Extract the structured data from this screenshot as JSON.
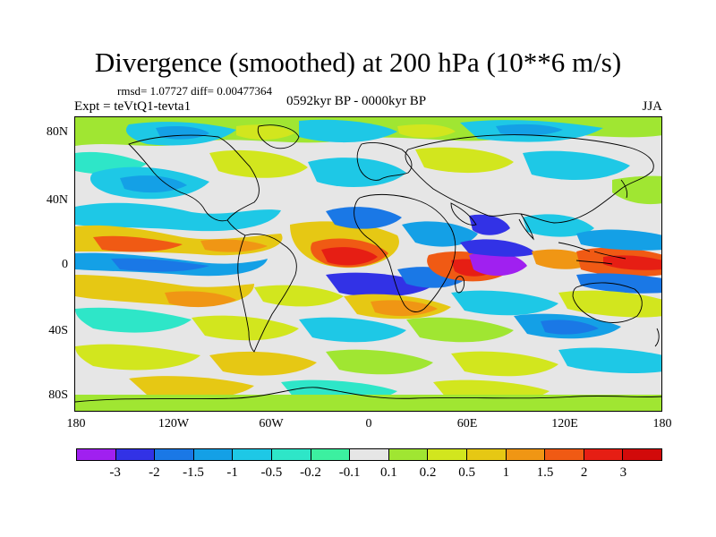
{
  "title": "Divergence (smoothed) at 200 hPa (10**6 m/s)",
  "stats": "rmsd= 1.07727 diff= 0.00477364",
  "experiment": "Expt = teVtQ1-tevta1",
  "period": "0592kyr BP - 0000kyr BP",
  "season": "JJA",
  "lat_labels": [
    "80N",
    "40N",
    "0",
    "40S",
    "80S"
  ],
  "lon_labels": [
    "180",
    "120W",
    "60W",
    "0",
    "60E",
    "120E",
    "180"
  ],
  "colorbar": {
    "labels": [
      "-3",
      "-2",
      "-1.5",
      "-1",
      "-0.5",
      "-0.2",
      "-0.1",
      "0.1",
      "0.2",
      "0.5",
      "1",
      "1.5",
      "2",
      "3"
    ],
    "colors": [
      "#a020f0",
      "#3232e6",
      "#1a78e6",
      "#14a0e6",
      "#1ec8e6",
      "#2ee6c8",
      "#3cf0a0",
      "#e6e6e6",
      "#a0e632",
      "#d2e61e",
      "#e6c814",
      "#f09614",
      "#f05a14",
      "#e61e14",
      "#d20a0a"
    ]
  },
  "field_colors": {
    "background": "#e6e6e6",
    "strong_neg": "#a020f0",
    "neg2": "#3232e6",
    "neg15": "#1a78e6",
    "neg1": "#14a0e6",
    "neg05": "#1ec8e6",
    "neg02": "#2ee6c8",
    "pos02": "#a0e632",
    "pos05": "#d2e61e",
    "pos1": "#e6c814",
    "pos15": "#f09614",
    "pos2": "#f05a14",
    "pos3": "#e61e14"
  }
}
